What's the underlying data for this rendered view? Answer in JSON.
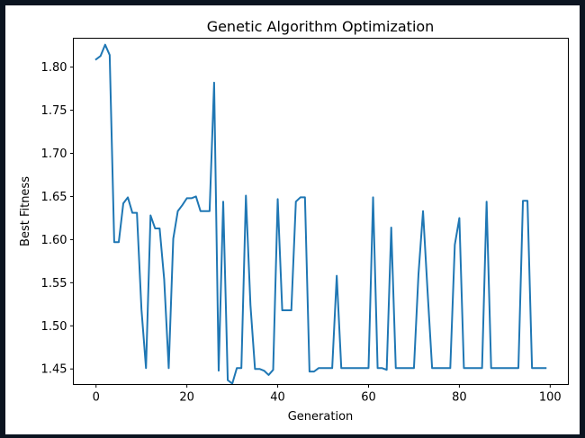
{
  "chart_data": {
    "type": "line",
    "title": "Genetic Algorithm Optimization",
    "xlabel": "Generation",
    "ylabel": "Best Fitness",
    "xlim": [
      -5,
      104
    ],
    "ylim": [
      1.432,
      1.8335
    ],
    "xticks": [
      0,
      20,
      40,
      60,
      80,
      100
    ],
    "yticks": [
      1.45,
      1.5,
      1.55,
      1.6,
      1.65,
      1.7,
      1.75,
      1.8
    ],
    "ytick_labels": [
      "1.45",
      "1.50",
      "1.55",
      "1.60",
      "1.65",
      "1.70",
      "1.75",
      "1.80"
    ],
    "grid": false,
    "series": [
      {
        "color": "#1f77b4",
        "x": [
          0,
          1,
          2,
          3,
          4,
          5,
          6,
          7,
          8,
          9,
          10,
          11,
          12,
          13,
          14,
          15,
          16,
          17,
          18,
          19,
          20,
          21,
          22,
          23,
          24,
          25,
          26,
          27,
          28,
          29,
          30,
          31,
          32,
          33,
          34,
          35,
          36,
          37,
          38,
          39,
          40,
          41,
          42,
          43,
          44,
          45,
          46,
          47,
          48,
          49,
          50,
          51,
          52,
          53,
          54,
          55,
          56,
          57,
          58,
          59,
          60,
          61,
          62,
          63,
          64,
          65,
          66,
          67,
          68,
          69,
          70,
          71,
          72,
          73,
          74,
          75,
          76,
          77,
          78,
          79,
          80,
          81,
          82,
          83,
          84,
          85,
          86,
          87,
          88,
          89,
          90,
          91,
          92,
          93,
          94,
          95,
          96,
          97,
          98,
          99
        ],
        "y": [
          1.809,
          1.813,
          1.826,
          1.814,
          1.597,
          1.597,
          1.642,
          1.649,
          1.631,
          1.631,
          1.519,
          1.451,
          1.628,
          1.613,
          1.613,
          1.554,
          1.451,
          1.601,
          1.633,
          1.64,
          1.648,
          1.648,
          1.65,
          1.633,
          1.633,
          1.633,
          1.782,
          1.448,
          1.644,
          1.437,
          1.433,
          1.451,
          1.451,
          1.651,
          1.524,
          1.45,
          1.45,
          1.448,
          1.443,
          1.449,
          1.647,
          1.518,
          1.518,
          1.518,
          1.644,
          1.649,
          1.649,
          1.447,
          1.447,
          1.451,
          1.451,
          1.451,
          1.451,
          1.558,
          1.451,
          1.451,
          1.451,
          1.451,
          1.451,
          1.451,
          1.451,
          1.649,
          1.451,
          1.451,
          1.449,
          1.614,
          1.451,
          1.451,
          1.451,
          1.451,
          1.451,
          1.56,
          1.633,
          1.54,
          1.451,
          1.451,
          1.451,
          1.451,
          1.451,
          1.594,
          1.625,
          1.451,
          1.451,
          1.451,
          1.451,
          1.451,
          1.644,
          1.451,
          1.451,
          1.451,
          1.451,
          1.451,
          1.451,
          1.451,
          1.645,
          1.645,
          1.451,
          1.451,
          1.451,
          1.451
        ]
      }
    ]
  }
}
